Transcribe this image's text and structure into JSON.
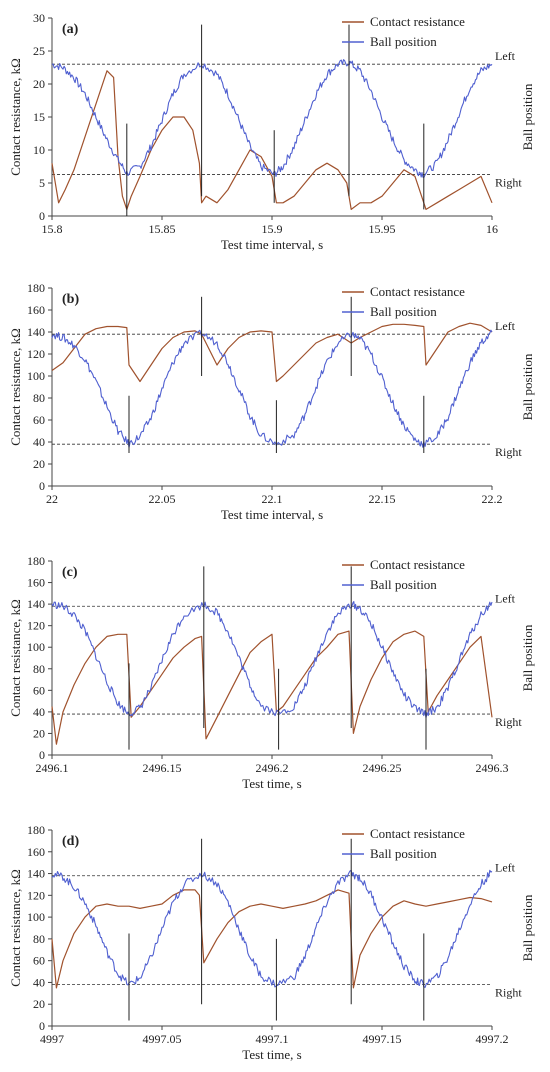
{
  "chart_data": [
    {
      "type": "line",
      "panel_label": "(a)",
      "xlabel": "Test time interval, s",
      "ylabel": "Contact resistance, kΩ",
      "right_label": "Ball position",
      "xlim": [
        15.8,
        16
      ],
      "ylim": [
        0,
        30
      ],
      "xticks": [
        "15.8",
        "15.85",
        "15.9",
        "15.95",
        "16"
      ],
      "yticks": [
        "0",
        "5",
        "10",
        "15",
        "20",
        "25",
        "30"
      ],
      "ref_lines": [
        {
          "y": 23,
          "label": "Left"
        },
        {
          "y": 6.3,
          "label": "Right"
        }
      ],
      "markers": [
        {
          "x": 15.834,
          "y0": 0,
          "y1": 14
        },
        {
          "x": 15.868,
          "y0": 3,
          "y1": 29
        },
        {
          "x": 15.901,
          "y0": 2,
          "y1": 13
        },
        {
          "x": 15.935,
          "y0": 3,
          "y1": 29
        },
        {
          "x": 15.969,
          "y0": 1,
          "y1": 14
        }
      ],
      "series": [
        {
          "name": "Contact resistance",
          "color": "#a0522d",
          "x": [
            15.8,
            15.803,
            15.806,
            15.81,
            15.815,
            15.82,
            15.825,
            15.828,
            15.83,
            15.832,
            15.834,
            15.836,
            15.84,
            15.845,
            15.85,
            15.855,
            15.86,
            15.864,
            15.867,
            15.868,
            15.87,
            15.875,
            15.88,
            15.885,
            15.89,
            15.895,
            15.9,
            15.902,
            15.905,
            15.91,
            15.915,
            15.92,
            15.925,
            15.93,
            15.934,
            15.936,
            15.94,
            15.945,
            15.95,
            15.955,
            15.96,
            15.965,
            15.968,
            15.97,
            15.975,
            15.98,
            15.985,
            15.99,
            15.995,
            16
          ],
          "y": [
            8,
            2,
            4,
            7,
            12,
            17,
            22,
            21,
            9,
            3,
            1,
            3,
            6,
            10,
            13,
            15,
            15,
            13,
            8,
            2,
            3,
            2,
            4,
            7,
            10,
            9,
            6,
            2,
            2,
            3,
            5,
            7,
            8,
            7,
            5,
            1,
            2,
            2,
            3,
            5,
            7,
            6,
            3,
            1,
            2,
            3,
            4,
            5,
            6,
            2
          ]
        },
        {
          "name": "Ball position",
          "color": "#5060d0",
          "x": [
            15.8,
            15.805,
            15.81,
            15.815,
            15.82,
            15.825,
            15.83,
            15.834,
            15.84,
            15.845,
            15.85,
            15.855,
            15.86,
            15.868,
            15.875,
            15.88,
            15.885,
            15.89,
            15.895,
            15.901,
            15.905,
            15.91,
            15.915,
            15.92,
            15.925,
            15.93,
            15.935,
            15.94,
            15.945,
            15.95,
            15.955,
            15.96,
            15.965,
            15.969,
            15.975,
            15.98,
            15.985,
            15.99,
            15.995,
            16
          ],
          "y": [
            23,
            22.5,
            21,
            18.5,
            15,
            11.5,
            8.5,
            6.5,
            7.5,
            10.5,
            14.5,
            18.5,
            21.5,
            23.2,
            21.5,
            18.5,
            14.5,
            10.5,
            7.5,
            6.3,
            7.5,
            10.5,
            14.5,
            18.5,
            21.5,
            23,
            23.3,
            22,
            19,
            15,
            11.5,
            8.5,
            7,
            6.3,
            8,
            11.5,
            15.5,
            19.5,
            22,
            23
          ]
        }
      ]
    },
    {
      "type": "line",
      "panel_label": "(b)",
      "xlabel": "Test time interval, s",
      "ylabel": "Contact resistance, kΩ",
      "right_label": "Ball position",
      "xlim": [
        22,
        22.2
      ],
      "ylim": [
        0,
        180
      ],
      "xticks": [
        "22",
        "22.05",
        "22.1",
        "22.15",
        "22.2"
      ],
      "yticks": [
        "0",
        "20",
        "40",
        "60",
        "80",
        "100",
        "120",
        "140",
        "160",
        "180"
      ],
      "ref_lines": [
        {
          "y": 138,
          "label": "Left"
        },
        {
          "y": 38,
          "label": "Right"
        }
      ],
      "markers": [
        {
          "x": 22.035,
          "y0": 30,
          "y1": 82
        },
        {
          "x": 22.068,
          "y0": 100,
          "y1": 172
        },
        {
          "x": 22.102,
          "y0": 30,
          "y1": 78
        },
        {
          "x": 22.136,
          "y0": 100,
          "y1": 172
        },
        {
          "x": 22.169,
          "y0": 30,
          "y1": 82
        }
      ],
      "series": [
        {
          "name": "Contact resistance",
          "color": "#a0522d",
          "x": [
            22,
            22.005,
            22.01,
            22.015,
            22.02,
            22.025,
            22.03,
            22.034,
            22.035,
            22.04,
            22.045,
            22.05,
            22.055,
            22.06,
            22.065,
            22.068,
            22.07,
            22.075,
            22.08,
            22.085,
            22.09,
            22.095,
            22.1,
            22.102,
            22.105,
            22.11,
            22.115,
            22.12,
            22.125,
            22.13,
            22.136,
            22.14,
            22.145,
            22.15,
            22.155,
            22.16,
            22.165,
            22.169,
            22.17,
            22.175,
            22.18,
            22.185,
            22.19,
            22.195,
            22.2
          ],
          "y": [
            105,
            112,
            125,
            138,
            143,
            145,
            145,
            144,
            110,
            95,
            110,
            125,
            135,
            140,
            141,
            138,
            130,
            110,
            125,
            135,
            140,
            141,
            140,
            95,
            100,
            110,
            120,
            130,
            135,
            138,
            130,
            135,
            140,
            145,
            147,
            147,
            146,
            145,
            110,
            125,
            140,
            145,
            148,
            146,
            140
          ]
        },
        {
          "name": "Ball position",
          "color": "#5060d0",
          "x": [
            22,
            22.005,
            22.01,
            22.015,
            22.02,
            22.025,
            22.03,
            22.035,
            22.04,
            22.045,
            22.05,
            22.055,
            22.06,
            22.068,
            22.075,
            22.08,
            22.085,
            22.09,
            22.095,
            22.102,
            22.11,
            22.115,
            22.12,
            22.125,
            22.13,
            22.136,
            22.14,
            22.145,
            22.15,
            22.155,
            22.16,
            22.165,
            22.169,
            22.175,
            22.18,
            22.185,
            22.19,
            22.195,
            22.2
          ],
          "y": [
            138,
            135,
            128,
            115,
            95,
            72,
            50,
            38,
            45,
            62,
            88,
            112,
            130,
            139,
            130,
            112,
            88,
            64,
            46,
            38,
            46,
            65,
            90,
            113,
            130,
            138,
            134,
            120,
            98,
            75,
            55,
            42,
            38,
            45,
            63,
            88,
            112,
            130,
            140
          ]
        }
      ]
    },
    {
      "type": "line",
      "panel_label": "(c)",
      "xlabel": "Test time, s",
      "ylabel": "Contact resistance, kΩ",
      "right_label": "Ball position",
      "xlim": [
        2496.1,
        2496.3
      ],
      "ylim": [
        0,
        180
      ],
      "xticks": [
        "2496.1",
        "2496.15",
        "2496.2",
        "2496.25",
        "2496.3"
      ],
      "yticks": [
        "0",
        "20",
        "40",
        "60",
        "80",
        "100",
        "120",
        "140",
        "160",
        "180"
      ],
      "ref_lines": [
        {
          "y": 138,
          "label": "Left"
        },
        {
          "y": 38,
          "label": "Right"
        }
      ],
      "markers": [
        {
          "x": 2496.135,
          "y0": 5,
          "y1": 85
        },
        {
          "x": 2496.169,
          "y0": 25,
          "y1": 175
        },
        {
          "x": 2496.203,
          "y0": 5,
          "y1": 80
        },
        {
          "x": 2496.236,
          "y0": 25,
          "y1": 175
        },
        {
          "x": 2496.27,
          "y0": 5,
          "y1": 80
        }
      ],
      "series": [
        {
          "name": "Contact resistance",
          "color": "#a0522d",
          "x": [
            2496.1,
            2496.102,
            2496.105,
            2496.11,
            2496.115,
            2496.12,
            2496.125,
            2496.13,
            2496.134,
            2496.136,
            2496.14,
            2496.145,
            2496.15,
            2496.155,
            2496.16,
            2496.165,
            2496.168,
            2496.17,
            2496.175,
            2496.18,
            2496.185,
            2496.19,
            2496.195,
            2496.2,
            2496.202,
            2496.205,
            2496.21,
            2496.215,
            2496.22,
            2496.225,
            2496.23,
            2496.235,
            2496.237,
            2496.24,
            2496.245,
            2496.25,
            2496.255,
            2496.26,
            2496.265,
            2496.269,
            2496.271,
            2496.275,
            2496.28,
            2496.285,
            2496.29,
            2496.295,
            2496.3
          ],
          "y": [
            45,
            10,
            40,
            65,
            85,
            100,
            110,
            112,
            112,
            35,
            45,
            60,
            75,
            90,
            100,
            108,
            110,
            15,
            35,
            55,
            75,
            95,
            105,
            112,
            40,
            45,
            60,
            75,
            90,
            100,
            112,
            115,
            20,
            45,
            70,
            90,
            105,
            112,
            115,
            110,
            40,
            55,
            70,
            85,
            100,
            110,
            35
          ]
        },
        {
          "name": "Ball position",
          "color": "#5060d0",
          "x": [
            2496.1,
            2496.105,
            2496.11,
            2496.115,
            2496.12,
            2496.125,
            2496.13,
            2496.135,
            2496.14,
            2496.145,
            2496.15,
            2496.155,
            2496.16,
            2496.169,
            2496.175,
            2496.18,
            2496.185,
            2496.19,
            2496.195,
            2496.203,
            2496.21,
            2496.215,
            2496.22,
            2496.225,
            2496.23,
            2496.236,
            2496.24,
            2496.245,
            2496.25,
            2496.255,
            2496.26,
            2496.265,
            2496.27,
            2496.275,
            2496.28,
            2496.285,
            2496.29,
            2496.295,
            2496.3
          ],
          "y": [
            140,
            138,
            130,
            115,
            92,
            68,
            48,
            38,
            44,
            62,
            88,
            112,
            130,
            140,
            132,
            115,
            90,
            65,
            46,
            38,
            45,
            64,
            90,
            114,
            131,
            140,
            136,
            122,
            100,
            77,
            56,
            43,
            38,
            44,
            62,
            87,
            111,
            130,
            142
          ]
        }
      ]
    },
    {
      "type": "line",
      "panel_label": "(d)",
      "xlabel": "Test time, s",
      "ylabel": "Contact resistance, kΩ",
      "right_label": "Ball position",
      "xlim": [
        4997,
        4997.2
      ],
      "ylim": [
        0,
        180
      ],
      "xticks": [
        "4997",
        "4997.05",
        "4997.1",
        "4997.15",
        "4997.2"
      ],
      "yticks": [
        "0",
        "20",
        "40",
        "60",
        "80",
        "100",
        "120",
        "140",
        "160",
        "180"
      ],
      "ref_lines": [
        {
          "y": 138,
          "label": "Left"
        },
        {
          "y": 38,
          "label": "Right"
        }
      ],
      "markers": [
        {
          "x": 4997.035,
          "y0": 5,
          "y1": 85
        },
        {
          "x": 4997.068,
          "y0": 20,
          "y1": 172
        },
        {
          "x": 4997.102,
          "y0": 5,
          "y1": 80
        },
        {
          "x": 4997.136,
          "y0": 20,
          "y1": 172
        },
        {
          "x": 4997.169,
          "y0": 5,
          "y1": 85
        }
      ],
      "series": [
        {
          "name": "Contact resistance",
          "color": "#a0522d",
          "x": [
            4997,
            4997.002,
            4997.005,
            4997.01,
            4997.015,
            4997.02,
            4997.025,
            4997.03,
            4997.035,
            4997.04,
            4997.045,
            4997.05,
            4997.055,
            4997.06,
            4997.065,
            4997.067,
            4997.069,
            4997.075,
            4997.08,
            4997.085,
            4997.09,
            4997.095,
            4997.1,
            4997.105,
            4997.11,
            4997.115,
            4997.12,
            4997.125,
            4997.13,
            4997.135,
            4997.137,
            4997.14,
            4997.145,
            4997.15,
            4997.155,
            4997.16,
            4997.165,
            4997.17,
            4997.175,
            4997.18,
            4997.185,
            4997.19,
            4997.195,
            4997.2
          ],
          "y": [
            80,
            35,
            60,
            85,
            100,
            110,
            112,
            110,
            110,
            108,
            110,
            112,
            120,
            125,
            125,
            120,
            58,
            80,
            95,
            105,
            110,
            112,
            110,
            108,
            110,
            112,
            115,
            120,
            125,
            122,
            35,
            65,
            85,
            100,
            110,
            115,
            112,
            110,
            112,
            114,
            116,
            118,
            117,
            114
          ]
        },
        {
          "name": "Ball position",
          "color": "#5060d0",
          "x": [
            4997,
            4997.005,
            4997.01,
            4997.015,
            4997.02,
            4997.025,
            4997.03,
            4997.035,
            4997.04,
            4997.045,
            4997.05,
            4997.055,
            4997.06,
            4997.068,
            4997.075,
            4997.08,
            4997.085,
            4997.09,
            4997.095,
            4997.102,
            4997.11,
            4997.115,
            4997.12,
            4997.125,
            4997.13,
            4997.136,
            4997.14,
            4997.145,
            4997.15,
            4997.155,
            4997.16,
            4997.165,
            4997.169,
            4997.175,
            4997.18,
            4997.185,
            4997.19,
            4997.195,
            4997.2
          ],
          "y": [
            140,
            137,
            128,
            113,
            92,
            68,
            48,
            38,
            44,
            63,
            89,
            113,
            130,
            140,
            131,
            114,
            89,
            64,
            46,
            38,
            45,
            64,
            90,
            114,
            131,
            140,
            136,
            121,
            99,
            76,
            55,
            42,
            38,
            45,
            63,
            88,
            112,
            130,
            142
          ]
        }
      ]
    }
  ]
}
